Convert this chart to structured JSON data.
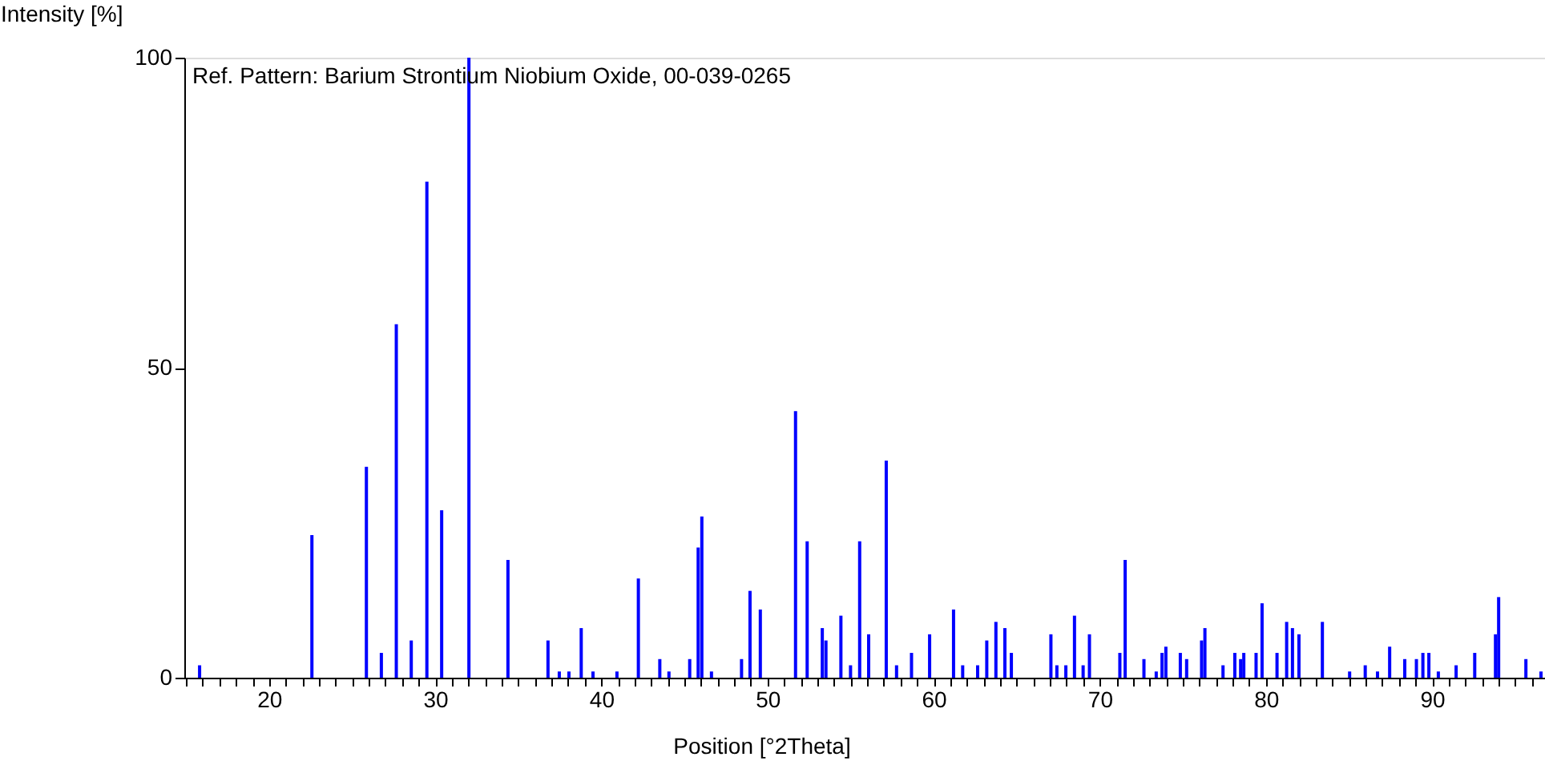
{
  "chart_data": {
    "type": "bar",
    "xlabel": "Position [°2Theta]",
    "ylabel": "Intensity [%]",
    "annotations": [
      "Ref. Pattern: Barium Strontium Niobium Oxide, 00-039-0265"
    ],
    "x": [
      15.82,
      22.58,
      25.86,
      26.76,
      27.66,
      28.56,
      29.5,
      30.39,
      32.03,
      34.38,
      36.79,
      37.47,
      38.05,
      38.79,
      39.5,
      40.94,
      42.23,
      43.52,
      44.07,
      45.32,
      45.83,
      46.05,
      46.63,
      48.44,
      48.95,
      49.57,
      51.69,
      52.39,
      53.3,
      53.52,
      54.42,
      55.0,
      55.55,
      56.09,
      57.15,
      57.77,
      58.67,
      59.76,
      61.2,
      61.75,
      62.65,
      63.2,
      63.75,
      64.29,
      64.68,
      67.06,
      67.42,
      67.96,
      68.48,
      69.0,
      69.38,
      71.21,
      71.53,
      72.66,
      73.4,
      73.75,
      73.98,
      74.85,
      75.23,
      76.13,
      76.33,
      77.42,
      78.13,
      78.48,
      78.67,
      79.41,
      79.77,
      80.67,
      81.25,
      81.6,
      81.99,
      83.4,
      85.04,
      85.98,
      86.72,
      87.45,
      88.36,
      89.06,
      89.45,
      89.81,
      90.38,
      91.45,
      92.57,
      93.82,
      94.01,
      95.65,
      96.56
    ],
    "series": [
      {
        "color": "#0000ff",
        "values": [
          2,
          23,
          34,
          4,
          57,
          6,
          80,
          27,
          100,
          19,
          6,
          1,
          1,
          8,
          1,
          1,
          16,
          3,
          1,
          3,
          21,
          26,
          1,
          3,
          14,
          11,
          43,
          22,
          8,
          6,
          10,
          2,
          22,
          7,
          35,
          2,
          4,
          7,
          11,
          2,
          2,
          6,
          9,
          8,
          4,
          7,
          2,
          2,
          10,
          2,
          7,
          4,
          19,
          3,
          1,
          4,
          5,
          4,
          3,
          6,
          8,
          2,
          4,
          3,
          4,
          4,
          12,
          4,
          9,
          8,
          7,
          9,
          1,
          2,
          1,
          5,
          3,
          3,
          4,
          4,
          1,
          2,
          4,
          7,
          13,
          3,
          1
        ]
      }
    ],
    "xlim": [
      14.9,
      96.8
    ],
    "ylim": [
      0,
      100
    ],
    "yticks": [
      0,
      50,
      100
    ],
    "xticks": [
      {
        "value": 15,
        "label": null
      },
      {
        "value": 16,
        "label": null
      },
      {
        "value": 17,
        "label": null
      },
      {
        "value": 18,
        "label": null
      },
      {
        "value": 19,
        "label": null
      },
      20,
      {
        "value": 21,
        "label": null
      },
      {
        "value": 22,
        "label": null
      },
      {
        "value": 23,
        "label": null
      },
      {
        "value": 24,
        "label": null
      },
      {
        "value": 25,
        "label": null
      },
      {
        "value": 26,
        "label": null
      },
      {
        "value": 27,
        "label": null
      },
      {
        "value": 28,
        "label": null
      },
      {
        "value": 29,
        "label": null
      },
      30,
      {
        "value": 31,
        "label": null
      },
      {
        "value": 32,
        "label": null
      },
      {
        "value": 33,
        "label": null
      },
      {
        "value": 34,
        "label": null
      },
      {
        "value": 35,
        "label": null
      },
      {
        "value": 36,
        "label": null
      },
      {
        "value": 37,
        "label": null
      },
      {
        "value": 38,
        "label": null
      },
      {
        "value": 39,
        "label": null
      },
      40,
      {
        "value": 41,
        "label": null
      },
      {
        "value": 42,
        "label": null
      },
      {
        "value": 43,
        "label": null
      },
      {
        "value": 44,
        "label": null
      },
      {
        "value": 45,
        "label": null
      },
      {
        "value": 46,
        "label": null
      },
      {
        "value": 47,
        "label": null
      },
      {
        "value": 48,
        "label": null
      },
      {
        "value": 49,
        "label": null
      },
      50,
      {
        "value": 51,
        "label": null
      },
      {
        "value": 52,
        "label": null
      },
      {
        "value": 53,
        "label": null
      },
      {
        "value": 54,
        "label": null
      },
      {
        "value": 55,
        "label": null
      },
      {
        "value": 56,
        "label": null
      },
      {
        "value": 57,
        "label": null
      },
      {
        "value": 58,
        "label": null
      },
      {
        "value": 59,
        "label": null
      },
      60,
      {
        "value": 61,
        "label": null
      },
      {
        "value": 62,
        "label": null
      },
      {
        "value": 63,
        "label": null
      },
      {
        "value": 64,
        "label": null
      },
      {
        "value": 65,
        "label": null
      },
      {
        "value": 66,
        "label": null
      },
      {
        "value": 67,
        "label": null
      },
      {
        "value": 68,
        "label": null
      },
      {
        "value": 69,
        "label": null
      },
      70,
      {
        "value": 71,
        "label": null
      },
      {
        "value": 72,
        "label": null
      },
      {
        "value": 73,
        "label": null
      },
      {
        "value": 74,
        "label": null
      },
      {
        "value": 75,
        "label": null
      },
      {
        "value": 76,
        "label": null
      },
      {
        "value": 77,
        "label": null
      },
      {
        "value": 78,
        "label": null
      },
      {
        "value": 79,
        "label": null
      },
      80,
      {
        "value": 81,
        "label": null
      },
      {
        "value": 82,
        "label": null
      },
      {
        "value": 83,
        "label": null
      },
      {
        "value": 84,
        "label": null
      },
      {
        "value": 85,
        "label": null
      },
      {
        "value": 86,
        "label": null
      },
      {
        "value": 87,
        "label": null
      },
      {
        "value": 88,
        "label": null
      },
      {
        "value": 89,
        "label": null
      },
      90,
      {
        "value": 91,
        "label": null
      },
      {
        "value": 92,
        "label": null
      },
      {
        "value": 93,
        "label": null
      },
      {
        "value": 94,
        "label": null
      },
      {
        "value": 95,
        "label": null
      },
      {
        "value": 96,
        "label": null
      }
    ],
    "grid": false
  }
}
